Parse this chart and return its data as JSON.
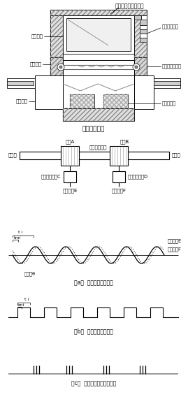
{
  "title_top": "検出器付属モーター",
  "title_torque": "トルク検出器",
  "label_magnet": "永久磁石",
  "label_inner_gear": "内歯歯車",
  "label_outer_gear": "外歯歯車",
  "label_hollow": "回転中空円筒",
  "label_torsion": "トーションバー",
  "label_coil": "検出コイル",
  "label_gear_a": "歯車A",
  "label_gear_b": "歯車B",
  "label_torque_shaft": "トルク伝達軸",
  "label_drive": "駆動側",
  "label_load": "負荷側",
  "label_detector_c": "電磁式検出器C",
  "label_detector_d": "電磁式検出器D",
  "label_signal_e": "信号出力E",
  "label_signal_f": "信号出力F",
  "label_output_e": "出力信号E",
  "label_output_f": "出力信号F",
  "label_phase": "位相差θ",
  "label_tmi": "tmi",
  "label_ti": "t i",
  "caption_a": "（a）  電磁検出器の信号",
  "caption_b": "（b）  ゲートが開く時間",
  "caption_c": "（c）  クロックパルス群の列",
  "bg_color": "#ffffff",
  "line_color": "#000000",
  "gray_color": "#888888"
}
